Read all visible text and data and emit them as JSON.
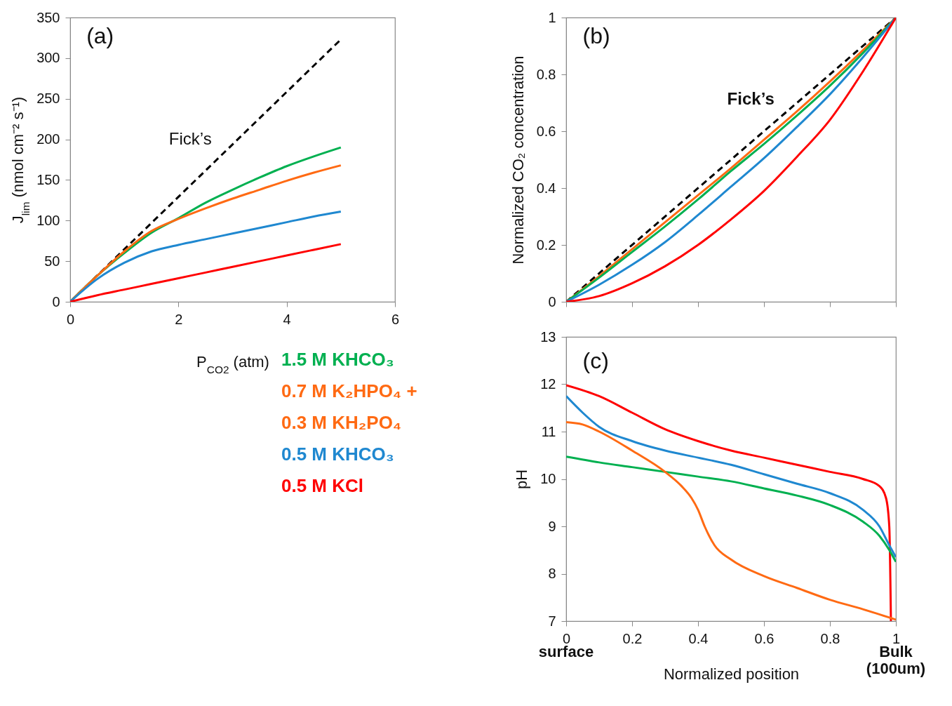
{
  "chart_data": [
    {
      "type": "line",
      "xlabel": "P$_{CO2}$ (atm)",
      "ylabel": "J$_{lim}$ (nmol cm⁻² s⁻¹)",
      "xlim": [
        0,
        6
      ],
      "xticks": [
        0,
        2,
        4,
        6
      ],
      "ylim": [
        0,
        350
      ],
      "yticks": [
        0,
        50,
        100,
        150,
        200,
        250,
        300,
        350
      ],
      "grid": false,
      "legend": "bottom",
      "line_style": "solid",
      "x": [
        0,
        0.5,
        1,
        1.5,
        2,
        2.5,
        3,
        3.5,
        4,
        4.5,
        5
      ],
      "annotations": [
        "(a)",
        "Fick’s"
      ],
      "series": [
        {
          "color": "#000000",
          "line_style": "dashed",
          "x": [
            0,
            5
          ],
          "values": [
            0,
            323
          ]
        },
        {
          "name": "1.5 M KHCO₃",
          "color": "#00b050",
          "values": [
            0,
            32,
            60,
            85,
            103,
            122,
            138,
            153,
            167,
            179,
            190
          ]
        },
        {
          "name": "0.7 M K₂HPO₄ + 0.3 M KH₂PO₄",
          "color": "#ff6a13",
          "values": [
            0,
            32,
            62,
            87,
            102,
            115,
            127,
            138,
            149,
            159,
            168
          ]
        },
        {
          "name": "0.5 M KHCO₃",
          "color": "#1f88d0",
          "values": [
            0,
            28,
            48,
            62,
            70,
            77,
            84,
            91,
            98,
            105,
            111
          ]
        },
        {
          "name": "0.5 M KCl",
          "color": "#ff0000",
          "values": [
            0,
            8,
            15,
            22,
            29,
            36,
            43,
            50,
            57,
            64,
            71
          ]
        }
      ]
    },
    {
      "type": "line",
      "ylabel": "Normalized CO₂ concentration",
      "xlim": [
        0,
        1
      ],
      "xticks": [
        0,
        0.2,
        0.4,
        0.6,
        0.8,
        1
      ],
      "ylim": [
        0,
        1
      ],
      "yticks": [
        0,
        0.2,
        0.4,
        0.6,
        0.8,
        1
      ],
      "tick_labels": "y",
      "grid": false,
      "line_style": "solid",
      "x": [
        0,
        0.1,
        0.2,
        0.3,
        0.4,
        0.5,
        0.6,
        0.7,
        0.8,
        0.9,
        1
      ],
      "annotations": [
        "(b)",
        "Fick’s"
      ],
      "series": [
        {
          "color": "#000000",
          "line_style": "dashed",
          "x": [
            0,
            1
          ],
          "values": [
            0,
            1
          ]
        },
        {
          "color": "#ff6a13",
          "values": [
            0,
            0.09,
            0.185,
            0.28,
            0.375,
            0.47,
            0.57,
            0.67,
            0.775,
            0.885,
            1
          ]
        },
        {
          "color": "#00b050",
          "values": [
            0,
            0.085,
            0.175,
            0.265,
            0.36,
            0.46,
            0.555,
            0.655,
            0.76,
            0.875,
            1
          ]
        },
        {
          "color": "#1f88d0",
          "values": [
            0,
            0.06,
            0.13,
            0.21,
            0.305,
            0.405,
            0.505,
            0.615,
            0.73,
            0.86,
            1
          ]
        },
        {
          "color": "#ff0000",
          "values": [
            0,
            0.02,
            0.065,
            0.125,
            0.2,
            0.29,
            0.39,
            0.51,
            0.64,
            0.81,
            1
          ]
        }
      ]
    },
    {
      "type": "line",
      "xlabel": "Normalized position",
      "ylabel": "pH",
      "xlim": [
        0,
        1
      ],
      "xticks": [
        0,
        0.2,
        0.4,
        0.6,
        0.8,
        1
      ],
      "ylim": [
        7,
        13
      ],
      "yticks": [
        7,
        8,
        9,
        10,
        11,
        12,
        13
      ],
      "grid": false,
      "line_style": "solid",
      "annotations": [
        "(c)",
        "surface",
        "Bulk (100um)"
      ],
      "series": [
        {
          "color": "#ff0000",
          "x": [
            0,
            0.1,
            0.2,
            0.3,
            0.4,
            0.5,
            0.6,
            0.7,
            0.8,
            0.9,
            0.95,
            0.97,
            0.98,
            0.985
          ],
          "values": [
            11.98,
            11.75,
            11.4,
            11.05,
            10.8,
            10.6,
            10.45,
            10.3,
            10.15,
            10.0,
            9.85,
            9.6,
            9.0,
            7.0
          ]
        },
        {
          "color": "#1f88d0",
          "x": [
            0,
            0.05,
            0.1,
            0.2,
            0.3,
            0.4,
            0.5,
            0.6,
            0.7,
            0.8,
            0.9,
            0.95,
            0.98,
            1
          ],
          "values": [
            11.75,
            11.4,
            11.1,
            10.8,
            10.6,
            10.45,
            10.3,
            10.1,
            9.9,
            9.7,
            9.35,
            9.0,
            8.6,
            8.35
          ]
        },
        {
          "color": "#00b050",
          "x": [
            0,
            0.1,
            0.2,
            0.3,
            0.4,
            0.5,
            0.6,
            0.7,
            0.8,
            0.9,
            0.95,
            0.98,
            1
          ],
          "values": [
            10.47,
            10.35,
            10.25,
            10.15,
            10.05,
            9.95,
            9.8,
            9.65,
            9.45,
            9.1,
            8.8,
            8.5,
            8.25
          ]
        },
        {
          "color": "#ff6a13",
          "x": [
            0,
            0.05,
            0.1,
            0.2,
            0.3,
            0.35,
            0.38,
            0.4,
            0.42,
            0.45,
            0.5,
            0.6,
            0.7,
            0.8,
            0.9,
            1
          ],
          "values": [
            11.2,
            11.15,
            11.0,
            10.6,
            10.15,
            9.85,
            9.6,
            9.35,
            9.0,
            8.6,
            8.3,
            7.95,
            7.7,
            7.45,
            7.25,
            7.03
          ]
        }
      ]
    }
  ]
}
